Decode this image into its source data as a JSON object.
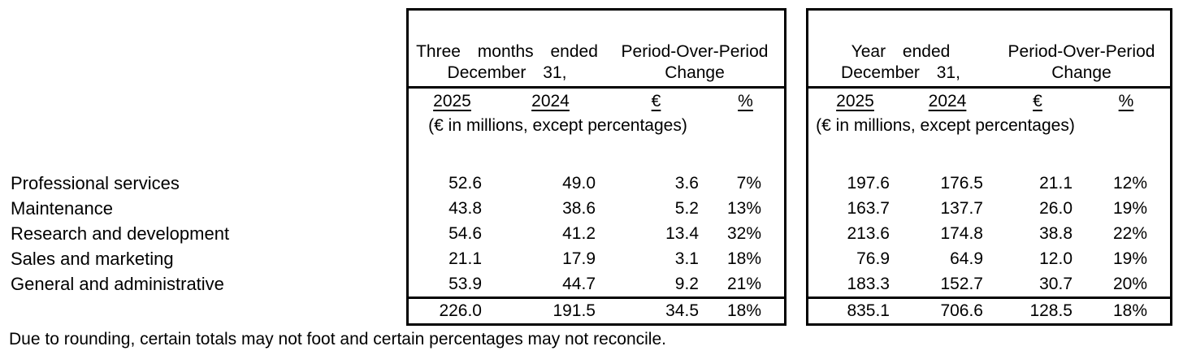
{
  "colors": {
    "text": "#000000",
    "background": "#ffffff",
    "border": "#000000"
  },
  "row_labels": [
    "Professional services",
    "Maintenance",
    "Research and development",
    "Sales and marketing",
    "General and administrative"
  ],
  "tables": [
    {
      "period_header_line1": "Three months ended",
      "period_header_line2": "December 31,",
      "change_header_line1": "Period-Over-Period",
      "change_header_line2": "Change",
      "columns": [
        "2025",
        "2024",
        "€",
        "%"
      ],
      "unit_note": "(€ in millions, except percentages)",
      "rows": [
        [
          "52.6",
          "49.0",
          "3.6",
          "7%"
        ],
        [
          "43.8",
          "38.6",
          "5.2",
          "13%"
        ],
        [
          "54.6",
          "41.2",
          "13.4",
          "32%"
        ],
        [
          "21.1",
          "17.9",
          "3.1",
          "18%"
        ],
        [
          "53.9",
          "44.7",
          "9.2",
          "21%"
        ]
      ],
      "total": [
        "226.0",
        "191.5",
        "34.5",
        "18%"
      ]
    },
    {
      "period_header_line1": "Year ended",
      "period_header_line2": "December 31,",
      "change_header_line1": "Period-Over-Period",
      "change_header_line2": "Change",
      "columns": [
        "2025",
        "2024",
        "€",
        "%"
      ],
      "unit_note": "(€ in millions, except percentages)",
      "rows": [
        [
          "197.6",
          "176.5",
          "21.1",
          "12%"
        ],
        [
          "163.7",
          "137.7",
          "26.0",
          "19%"
        ],
        [
          "213.6",
          "174.8",
          "38.8",
          "22%"
        ],
        [
          "76.9",
          "64.9",
          "12.0",
          "19%"
        ],
        [
          "183.3",
          "152.7",
          "30.7",
          "20%"
        ]
      ],
      "total": [
        "835.1",
        "706.6",
        "128.5",
        "18%"
      ]
    }
  ],
  "footnote": "Due to rounding, certain totals may not foot and certain percentages may not reconcile."
}
